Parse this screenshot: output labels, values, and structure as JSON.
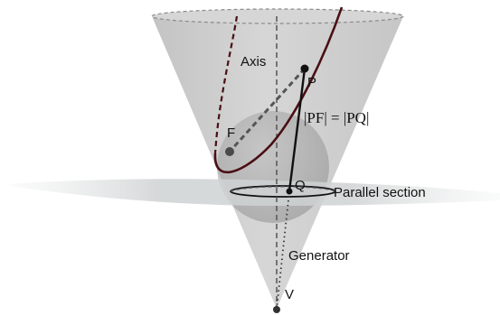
{
  "labels": {
    "axis": "Axis",
    "p": "P",
    "f": "F",
    "q": "Q",
    "v": "V",
    "equation": "|PF| = |PQ|",
    "parallel_section": "Parallel section",
    "generator": "Generator"
  },
  "colors": {
    "cone_fill": "#c4c4c4",
    "plane_fill": "#d3d6d7",
    "sphere_fill": "#9a9a9a",
    "curve": "#4a0f14",
    "line": "#111111"
  }
}
